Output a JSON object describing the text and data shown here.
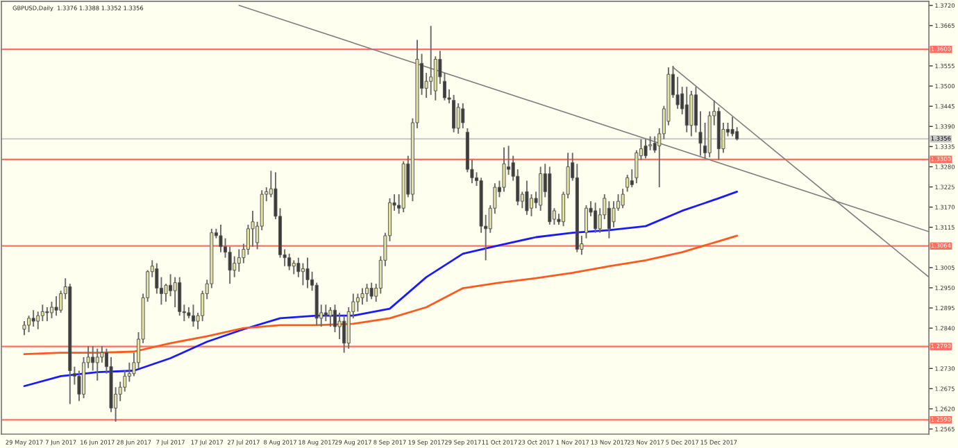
{
  "chart_data": {
    "type": "candlestick",
    "title": "GBPUSD,Daily  1.3376 1.3388 1.3352 1.3356",
    "categories": [
      "29 May 2017",
      null,
      null,
      null,
      null,
      null,
      null,
      null,
      "7 Jun 2017",
      null,
      null,
      null,
      null,
      null,
      null,
      null,
      "16 Jun 2017",
      null,
      null,
      null,
      null,
      null,
      null,
      null,
      "28 Jun 2017",
      null,
      null,
      null,
      null,
      null,
      null,
      null,
      "7 Jul 2017",
      null,
      null,
      null,
      null,
      null,
      null,
      null,
      "17 Jul 2017",
      null,
      null,
      null,
      null,
      null,
      null,
      null,
      "27 Jul 2017",
      null,
      null,
      null,
      null,
      null,
      null,
      null,
      "8 Aug 2017",
      null,
      null,
      null,
      null,
      null,
      null,
      null,
      "18 Aug 2017",
      null,
      null,
      null,
      null,
      null,
      null,
      null,
      "29 Aug 2017",
      null,
      null,
      null,
      null,
      null,
      null,
      null,
      "8 Sep 2017",
      null,
      null,
      null,
      null,
      null,
      null,
      null,
      "19 Sep 2017",
      null,
      null,
      null,
      null,
      null,
      null,
      null,
      "29 Sep 2017",
      null,
      null,
      null,
      null,
      null,
      null,
      null,
      "11 Oct 2017",
      null,
      null,
      null,
      null,
      null,
      null,
      null,
      "23 Oct 2017",
      null,
      null,
      null,
      null,
      null,
      null,
      null,
      "1 Nov 2017",
      null,
      null,
      null,
      null,
      null,
      null,
      null,
      "13 Nov 2017",
      null,
      null,
      null,
      null,
      null,
      null,
      null,
      "23 Nov 2017",
      null,
      null,
      null,
      null,
      null,
      null,
      null,
      "5 Dec 2017",
      null,
      null,
      null,
      null,
      null,
      null,
      null,
      "15 Dec 2017",
      null,
      null,
      null,
      null,
      null,
      null,
      null,
      null,
      null,
      null,
      null,
      null,
      null,
      null,
      null,
      null,
      null,
      null,
      null,
      null,
      null,
      null,
      null,
      null,
      null,
      null,
      null,
      null,
      null,
      null,
      null,
      null,
      null,
      null,
      null,
      null,
      null,
      null,
      null,
      null,
      null,
      null,
      null,
      null,
      null,
      null
    ],
    "ohlc": [
      [
        1.2837,
        1.2859,
        1.2821,
        1.2848
      ],
      [
        1.2848,
        1.2874,
        1.2829,
        1.2867
      ],
      [
        1.2867,
        1.2889,
        1.2844,
        1.2859
      ],
      [
        1.2859,
        1.2885,
        1.2837,
        1.2874
      ],
      [
        1.2874,
        1.2904,
        1.2859,
        1.2885
      ],
      [
        1.2885,
        1.2897,
        1.2859,
        1.2882
      ],
      [
        1.2882,
        1.2912,
        1.2867,
        1.2897
      ],
      [
        1.2897,
        1.2927,
        1.2874,
        1.2889
      ],
      [
        1.2889,
        1.2942,
        1.2882,
        1.2934
      ],
      [
        1.2934,
        1.2976,
        1.2919,
        1.2953
      ],
      [
        1.2953,
        1.2961,
        1.2633,
        1.2724
      ],
      [
        1.2716,
        1.2735,
        1.2686,
        1.2709
      ],
      [
        1.2709,
        1.2724,
        1.2641,
        1.266
      ],
      [
        1.266,
        1.2761,
        1.2649,
        1.2746
      ],
      [
        1.2746,
        1.2791,
        1.2731,
        1.2761
      ],
      [
        1.2761,
        1.2791,
        1.2724,
        1.2746
      ],
      [
        1.2746,
        1.2784,
        1.2697,
        1.2761
      ],
      [
        1.2761,
        1.2791,
        1.2746,
        1.2773
      ],
      [
        1.2773,
        1.2784,
        1.2716,
        1.2735
      ],
      [
        1.2735,
        1.2761,
        1.2611,
        1.2622
      ],
      [
        1.2622,
        1.2679,
        1.2585,
        1.266
      ],
      [
        1.266,
        1.2694,
        1.2641,
        1.2679
      ],
      [
        1.2679,
        1.2724,
        1.2667,
        1.2709
      ],
      [
        1.2709,
        1.2746,
        1.2694,
        1.2716
      ],
      [
        1.2716,
        1.2773,
        1.2709,
        1.2746
      ],
      [
        1.2746,
        1.2829,
        1.2731,
        1.281
      ],
      [
        1.281,
        1.2934,
        1.2799,
        1.2923
      ],
      [
        1.2923,
        1.2998,
        1.2912,
        1.2994
      ],
      [
        1.2994,
        1.3025,
        1.2979,
        1.3009
      ],
      [
        1.3002,
        1.3017,
        1.2934,
        1.2949
      ],
      [
        1.2949,
        1.2979,
        1.2904,
        1.2934
      ],
      [
        1.2934,
        1.2961,
        1.2912,
        1.2957
      ],
      [
        1.2957,
        1.2987,
        1.2927,
        1.2942
      ],
      [
        1.2942,
        1.2979,
        1.2897,
        1.2964
      ],
      [
        1.2964,
        1.2979,
        1.2874,
        1.2885
      ],
      [
        1.2885,
        1.2904,
        1.2859,
        1.2882
      ],
      [
        1.2882,
        1.2897,
        1.2867,
        1.2874
      ],
      [
        1.2874,
        1.2904,
        1.2844,
        1.2859
      ],
      [
        1.2859,
        1.2882,
        1.2837,
        1.2874
      ],
      [
        1.2874,
        1.2942,
        1.2859,
        1.2934
      ],
      [
        1.2934,
        1.2972,
        1.2919,
        1.2961
      ],
      [
        1.2961,
        1.3111,
        1.2949,
        1.31
      ],
      [
        1.31,
        1.3111,
        1.3085,
        1.3092
      ],
      [
        1.3092,
        1.3122,
        1.3047,
        1.3062
      ],
      [
        1.3062,
        1.3085,
        1.3032,
        1.3047
      ],
      [
        1.3047,
        1.3062,
        1.2961,
        1.2998
      ],
      [
        1.2998,
        1.3036,
        1.2979,
        1.3017
      ],
      [
        1.3017,
        1.3055,
        1.2994,
        1.3032
      ],
      [
        1.3032,
        1.307,
        1.3017,
        1.3055
      ],
      [
        1.3055,
        1.3122,
        1.304,
        1.3111
      ],
      [
        1.3111,
        1.316,
        1.3062,
        1.313
      ],
      [
        1.3073,
        1.313,
        1.3055,
        1.3118
      ],
      [
        1.3118,
        1.3216,
        1.3107,
        1.3205
      ],
      [
        1.3205,
        1.3224,
        1.3186,
        1.3212
      ],
      [
        1.3205,
        1.3269,
        1.3197,
        1.322
      ],
      [
        1.322,
        1.3265,
        1.3137,
        1.3145
      ],
      [
        1.3145,
        1.3167,
        1.3032,
        1.304
      ],
      [
        1.304,
        1.3055,
        1.3009,
        1.3032
      ],
      [
        1.3032,
        1.3043,
        1.2998,
        1.3009
      ],
      [
        1.3009,
        1.3025,
        1.2987,
        1.3017
      ],
      [
        1.3017,
        1.3032,
        1.2979,
        1.2994
      ],
      [
        1.2994,
        1.3017,
        1.2957,
        1.3002
      ],
      [
        1.3002,
        1.3032,
        1.2949,
        1.2972
      ],
      [
        1.2972,
        1.2994,
        1.2942,
        1.2957
      ],
      [
        1.2957,
        1.2964,
        1.2848,
        1.2867
      ],
      [
        1.2867,
        1.2904,
        1.2844,
        1.2882
      ],
      [
        1.2882,
        1.2904,
        1.2859,
        1.2874
      ],
      [
        1.2874,
        1.2897,
        1.2844,
        1.2889
      ],
      [
        1.2889,
        1.2904,
        1.2829,
        1.2844
      ],
      [
        1.2844,
        1.2882,
        1.281,
        1.2859
      ],
      [
        1.2859,
        1.2874,
        1.2773,
        1.2799
      ],
      [
        1.2799,
        1.2897,
        1.2784,
        1.2885
      ],
      [
        1.2885,
        1.2934,
        1.2867,
        1.2912
      ],
      [
        1.2912,
        1.2934,
        1.2885,
        1.2923
      ],
      [
        1.2923,
        1.2949,
        1.2904,
        1.2934
      ],
      [
        1.2934,
        1.2961,
        1.2912,
        1.2949
      ],
      [
        1.2949,
        1.2964,
        1.2919,
        1.2927
      ],
      [
        1.2927,
        1.2961,
        1.2912,
        1.2949
      ],
      [
        1.2949,
        1.3036,
        1.2934,
        1.3025
      ],
      [
        1.3025,
        1.31,
        1.3009,
        1.3092
      ],
      [
        1.3092,
        1.3194,
        1.3077,
        1.3182
      ],
      [
        1.3182,
        1.3205,
        1.316,
        1.3175
      ],
      [
        1.3175,
        1.3205,
        1.3152,
        1.3167
      ],
      [
        1.3167,
        1.3295,
        1.3156,
        1.3288
      ],
      [
        1.3288,
        1.331,
        1.3197,
        1.3205
      ],
      [
        1.3205,
        1.3412,
        1.3186,
        1.34
      ],
      [
        1.34,
        1.3626,
        1.3385,
        1.3573
      ],
      [
        1.3562,
        1.3588,
        1.3476,
        1.3494
      ],
      [
        1.3494,
        1.3536,
        1.3468,
        1.3513
      ],
      [
        1.3513,
        1.3664,
        1.3476,
        1.3525
      ],
      [
        1.3487,
        1.3581,
        1.3461,
        1.3573
      ],
      [
        1.3573,
        1.3596,
        1.3506,
        1.3525
      ],
      [
        1.3513,
        1.3536,
        1.3461,
        1.3468
      ],
      [
        1.3468,
        1.3491,
        1.3453,
        1.3464
      ],
      [
        1.3461,
        1.3476,
        1.3374,
        1.3385
      ],
      [
        1.3385,
        1.3453,
        1.337,
        1.3442
      ],
      [
        1.3438,
        1.3453,
        1.3385,
        1.34
      ],
      [
        1.3374,
        1.3385,
        1.3265,
        1.3273
      ],
      [
        1.3273,
        1.3299,
        1.3235,
        1.325
      ],
      [
        1.325,
        1.3265,
        1.3228,
        1.3242
      ],
      [
        1.3242,
        1.325,
        1.31,
        1.3118
      ],
      [
        1.3118,
        1.3149,
        1.3025,
        1.3111
      ],
      [
        1.3111,
        1.3175,
        1.31,
        1.3167
      ],
      [
        1.3167,
        1.3235,
        1.3152,
        1.3224
      ],
      [
        1.3224,
        1.3242,
        1.3197,
        1.3212
      ],
      [
        1.3224,
        1.3333,
        1.3212,
        1.3288
      ],
      [
        1.328,
        1.3337,
        1.3258,
        1.3273
      ],
      [
        1.3291,
        1.331,
        1.3242,
        1.3254
      ],
      [
        1.3254,
        1.3273,
        1.3175,
        1.3186
      ],
      [
        1.3186,
        1.3212,
        1.3167,
        1.3205
      ],
      [
        1.3212,
        1.3242,
        1.3149,
        1.316
      ],
      [
        1.3167,
        1.3205,
        1.3145,
        1.3194
      ],
      [
        1.3194,
        1.3212,
        1.3167,
        1.3182
      ],
      [
        1.3175,
        1.328,
        1.316,
        1.3261
      ],
      [
        1.3261,
        1.3288,
        1.3197,
        1.3212
      ],
      [
        1.3261,
        1.328,
        1.3122,
        1.313
      ],
      [
        1.3137,
        1.3167,
        1.3122,
        1.316
      ],
      [
        1.3137,
        1.3152,
        1.3122,
        1.313
      ],
      [
        1.313,
        1.3212,
        1.3118,
        1.3205
      ],
      [
        1.3205,
        1.3318,
        1.3194,
        1.328
      ],
      [
        1.3291,
        1.3318,
        1.3242,
        1.325
      ],
      [
        1.325,
        1.3288,
        1.3047,
        1.3055
      ],
      [
        1.3055,
        1.3092,
        1.304,
        1.307
      ],
      [
        1.31,
        1.3175,
        1.3085,
        1.3167
      ],
      [
        1.3167,
        1.3186,
        1.3145,
        1.3156
      ],
      [
        1.316,
        1.3182,
        1.31,
        1.3111
      ],
      [
        1.3111,
        1.3167,
        1.31,
        1.3149
      ],
      [
        1.3149,
        1.3205,
        1.3137,
        1.3194
      ],
      [
        1.3167,
        1.3186,
        1.3085,
        1.3111
      ],
      [
        1.313,
        1.3186,
        1.3115,
        1.3167
      ],
      [
        1.3167,
        1.3205,
        1.316,
        1.3186
      ],
      [
        1.3175,
        1.322,
        1.3167,
        1.3205
      ],
      [
        1.3224,
        1.3258,
        1.3212,
        1.325
      ],
      [
        1.3242,
        1.3273,
        1.3224,
        1.3231
      ],
      [
        1.325,
        1.3325,
        1.3235,
        1.3318
      ],
      [
        1.331,
        1.3355,
        1.3299,
        1.3329
      ],
      [
        1.3337,
        1.3355,
        1.3303,
        1.331
      ],
      [
        1.3337,
        1.3363,
        1.3325,
        1.334
      ],
      [
        1.3344,
        1.3363,
        1.3318,
        1.3325
      ],
      [
        1.3337,
        1.3385,
        1.3224,
        1.337
      ],
      [
        1.337,
        1.3446,
        1.3355,
        1.3438
      ],
      [
        1.3404,
        1.3551,
        1.3393,
        1.3532
      ],
      [
        1.3532,
        1.3555,
        1.3468,
        1.3476
      ],
      [
        1.3476,
        1.3525,
        1.3438,
        1.3449
      ],
      [
        1.3479,
        1.3498,
        1.3423,
        1.3438
      ],
      [
        1.3449,
        1.3498,
        1.3374,
        1.3393
      ],
      [
        1.3393,
        1.3487,
        1.3363,
        1.3476
      ],
      [
        1.3476,
        1.3498,
        1.3374,
        1.3393
      ],
      [
        1.3374,
        1.3431,
        1.331,
        1.3344
      ],
      [
        1.3337,
        1.34,
        1.3303,
        1.3318
      ],
      [
        1.3318,
        1.3431,
        1.3306,
        1.3419
      ],
      [
        1.3419,
        1.3461,
        1.3393,
        1.3431
      ],
      [
        1.3431,
        1.3442,
        1.3299,
        1.3329
      ],
      [
        1.3329,
        1.34,
        1.3318,
        1.3382
      ],
      [
        1.3382,
        1.34,
        1.3363,
        1.3374
      ],
      [
        1.3382,
        1.3416,
        1.3363,
        1.337
      ],
      [
        1.3376,
        1.3388,
        1.3352,
        1.3356
      ],
      null,
      null,
      null,
      null,
      null,
      null,
      null,
      null,
      null,
      null,
      null,
      null,
      null,
      null,
      null,
      null,
      null,
      null,
      null,
      null,
      null,
      null,
      null,
      null,
      null,
      null,
      null,
      null,
      null,
      null,
      null,
      null,
      null,
      null,
      null,
      null,
      null,
      null,
      null,
      null,
      null,
      null
    ],
    "series": [
      {
        "type": "line",
        "color": "#1a1aff",
        "values": [
          1.2682,
          null,
          null,
          null,
          null,
          null,
          null,
          null,
          1.2709,
          null,
          null,
          null,
          null,
          null,
          null,
          null,
          1.272,
          null,
          null,
          null,
          null,
          null,
          null,
          null,
          1.2724,
          null,
          null,
          null,
          null,
          null,
          null,
          null,
          1.2758,
          null,
          null,
          null,
          null,
          null,
          null,
          null,
          1.2803,
          null,
          null,
          null,
          null,
          null,
          null,
          null,
          1.2837,
          null,
          null,
          null,
          null,
          null,
          null,
          null,
          1.2867,
          null,
          null,
          null,
          null,
          null,
          null,
          null,
          1.2874,
          null,
          null,
          null,
          null,
          null,
          null,
          null,
          1.2874,
          null,
          null,
          null,
          null,
          null,
          null,
          null,
          1.2893,
          null,
          null,
          null,
          null,
          null,
          null,
          null,
          1.2979,
          null,
          null,
          null,
          null,
          null,
          null,
          null,
          1.3043,
          null,
          null,
          null,
          null,
          null,
          null,
          null,
          1.3066,
          null,
          null,
          null,
          null,
          null,
          null,
          null,
          1.3088,
          null,
          null,
          null,
          null,
          null,
          null,
          null,
          1.31,
          null,
          null,
          null,
          null,
          null,
          null,
          null,
          1.3107,
          null,
          null,
          null,
          null,
          null,
          null,
          null,
          1.3118,
          null,
          null,
          null,
          null,
          null,
          null,
          null,
          1.316,
          null,
          null,
          null,
          null,
          null,
          null,
          null,
          1.3194,
          null,
          null,
          null,
          1.3212,
          null,
          null,
          null,
          null,
          null,
          null,
          null,
          null,
          null,
          null,
          null,
          null,
          null,
          null,
          null,
          null,
          null,
          null,
          null,
          null,
          null,
          null,
          null,
          null,
          null,
          null,
          null,
          null,
          null,
          null,
          null,
          null,
          null,
          null,
          null,
          null,
          null,
          null,
          null,
          null,
          null,
          null
        ]
      },
      {
        "type": "line",
        "color": "#ff5a1e",
        "values": [
          1.2769,
          null,
          null,
          null,
          null,
          null,
          null,
          null,
          1.2773,
          null,
          null,
          null,
          null,
          null,
          null,
          null,
          1.2773,
          null,
          null,
          null,
          null,
          null,
          null,
          null,
          1.2776,
          null,
          null,
          null,
          null,
          null,
          null,
          null,
          1.2799,
          null,
          null,
          null,
          null,
          null,
          null,
          null,
          1.2818,
          null,
          null,
          null,
          null,
          null,
          null,
          null,
          1.284,
          null,
          null,
          null,
          null,
          null,
          null,
          null,
          1.2848,
          null,
          null,
          null,
          null,
          null,
          null,
          null,
          1.2848,
          null,
          null,
          null,
          null,
          null,
          null,
          null,
          1.2852,
          null,
          null,
          null,
          null,
          null,
          null,
          null,
          1.2867,
          null,
          null,
          null,
          null,
          null,
          null,
          null,
          1.2897,
          null,
          null,
          null,
          null,
          null,
          null,
          null,
          1.2949,
          null,
          null,
          null,
          null,
          null,
          null,
          null,
          1.2964,
          null,
          null,
          null,
          null,
          null,
          null,
          null,
          1.2976,
          null,
          null,
          null,
          null,
          null,
          null,
          null,
          1.2991,
          null,
          null,
          null,
          null,
          null,
          null,
          null,
          1.3009,
          null,
          null,
          null,
          null,
          null,
          null,
          null,
          1.3025,
          null,
          null,
          null,
          null,
          null,
          null,
          null,
          1.3047,
          null,
          null,
          null,
          null,
          null,
          null,
          null,
          1.3077,
          null,
          null,
          null,
          1.3092,
          null,
          null,
          null,
          null,
          null,
          null,
          null,
          null,
          null,
          null,
          null,
          null,
          null,
          null,
          null,
          null,
          null,
          null,
          null,
          null,
          null,
          null,
          null,
          null,
          null,
          null,
          null,
          null,
          null,
          null,
          null,
          null,
          null,
          null,
          null,
          null,
          null,
          null,
          null,
          null,
          null,
          null
        ]
      },
      {
        "type": "line",
        "color": "#808080",
        "values": [
          null,
          null,
          null,
          null,
          null,
          null,
          null,
          null,
          null,
          null,
          null,
          null,
          null,
          null,
          null,
          null,
          null,
          null,
          null,
          null,
          null,
          null,
          null,
          null,
          null,
          null,
          null,
          null,
          null,
          null,
          null,
          null,
          null,
          null,
          null,
          null,
          null,
          null,
          null,
          null,
          null,
          null,
          null,
          null,
          null,
          null,
          null,
          1.372,
          null,
          null,
          null,
          null,
          null,
          null,
          null,
          null,
          null,
          null,
          null,
          null,
          null,
          null,
          null,
          null,
          null,
          null,
          null,
          null,
          null,
          null,
          null,
          null,
          null,
          null,
          null,
          null,
          null,
          null,
          null,
          null,
          null,
          null,
          null,
          null,
          null,
          null,
          null,
          null,
          null,
          null,
          null,
          null,
          null,
          null,
          null,
          null,
          null,
          null,
          null,
          null,
          null,
          null,
          null,
          null,
          null,
          null,
          null,
          null,
          null,
          null,
          null,
          null,
          null,
          null,
          null,
          null,
          null,
          null,
          null,
          null,
          null,
          null,
          null,
          null,
          null,
          null,
          null,
          null,
          null,
          null,
          null,
          null,
          null,
          null,
          null,
          null,
          null,
          null,
          null,
          null,
          null,
          null,
          null,
          null,
          null,
          null,
          null,
          null,
          null,
          null,
          null,
          null,
          null,
          null,
          null,
          null,
          null,
          null,
          null,
          null,
          null,
          null,
          null,
          null,
          null,
          null,
          null,
          null,
          null,
          null,
          null,
          null,
          null,
          null,
          null,
          null,
          null,
          null,
          null,
          null,
          null,
          null,
          null,
          null,
          null,
          null,
          null,
          null,
          null,
          null,
          null,
          null,
          null,
          null,
          null,
          null,
          null,
          null,
          1.3103
        ]
      },
      {
        "type": "line",
        "color": "#808080",
        "values": [
          null,
          null,
          null,
          null,
          null,
          null,
          null,
          null,
          null,
          null,
          null,
          null,
          null,
          null,
          null,
          null,
          null,
          null,
          null,
          null,
          null,
          null,
          null,
          null,
          null,
          null,
          null,
          null,
          null,
          null,
          null,
          null,
          null,
          null,
          null,
          null,
          null,
          null,
          null,
          null,
          null,
          null,
          null,
          null,
          null,
          null,
          null,
          null,
          null,
          null,
          null,
          null,
          null,
          null,
          null,
          null,
          null,
          null,
          null,
          null,
          null,
          null,
          null,
          null,
          null,
          null,
          null,
          null,
          null,
          null,
          null,
          null,
          null,
          null,
          null,
          null,
          null,
          null,
          null,
          null,
          null,
          null,
          null,
          null,
          null,
          null,
          null,
          null,
          null,
          null,
          null,
          null,
          null,
          null,
          null,
          null,
          null,
          null,
          null,
          null,
          null,
          null,
          null,
          null,
          null,
          null,
          null,
          null,
          null,
          null,
          null,
          null,
          null,
          null,
          null,
          null,
          null,
          null,
          null,
          null,
          null,
          null,
          null,
          null,
          null,
          null,
          null,
          null,
          null,
          null,
          null,
          null,
          null,
          null,
          null,
          null,
          null,
          null,
          null,
          null,
          null,
          null,
          1.3551,
          null,
          null,
          null,
          null,
          null,
          null,
          null,
          null,
          null,
          null,
          null,
          null,
          null,
          null,
          null,
          null,
          null,
          null,
          null,
          null,
          null,
          null,
          null,
          null,
          null,
          null,
          null,
          null,
          null,
          null,
          null,
          null,
          null,
          null,
          null,
          null,
          null,
          null,
          null,
          null,
          null,
          null,
          null,
          null,
          null,
          null,
          null,
          null,
          null,
          null,
          null,
          null,
          null,
          null,
          null,
          1.2979
        ]
      }
    ],
    "ylim": [
      1.2551,
      1.3731
    ],
    "yticks": [
      {
        "value": 1.372,
        "label": "1.3720"
      },
      1.3665,
      1.3555,
      {
        "value": 1.35,
        "label": "1.3500"
      },
      1.3445,
      {
        "value": 1.339,
        "label": "1.3390"
      },
      1.3335,
      {
        "value": 1.328,
        "label": "1.3280"
      },
      1.3225,
      {
        "value": 1.317,
        "label": "1.3170"
      },
      1.3115,
      1.3005,
      {
        "value": 1.295,
        "label": "1.2950"
      },
      1.2895,
      {
        "value": 1.284,
        "label": "1.2840"
      },
      {
        "value": 1.273,
        "label": "1.2730"
      },
      1.2675,
      {
        "value": 1.262,
        "label": "1.2620"
      },
      1.2565
    ],
    "ref_lines": [
      {
        "axis": "y",
        "value": 1.36,
        "label": "1.3600",
        "color": "#ff7060"
      },
      {
        "axis": "y",
        "value": 1.3356,
        "label": "1.3356",
        "color": "#c8c8c8"
      },
      {
        "axis": "y",
        "value": 1.33,
        "label": "1.3300",
        "color": "#ff7060"
      },
      {
        "axis": "y",
        "value": 1.3064,
        "label": "1.3064",
        "color": "#ff7060"
      },
      {
        "axis": "y",
        "value": 1.279,
        "label": "1.2790",
        "color": "#ff7060"
      },
      {
        "axis": "y",
        "value": 1.259,
        "label": "1.2590",
        "color": "#ff7060"
      }
    ],
    "grid": false,
    "legend": false
  }
}
